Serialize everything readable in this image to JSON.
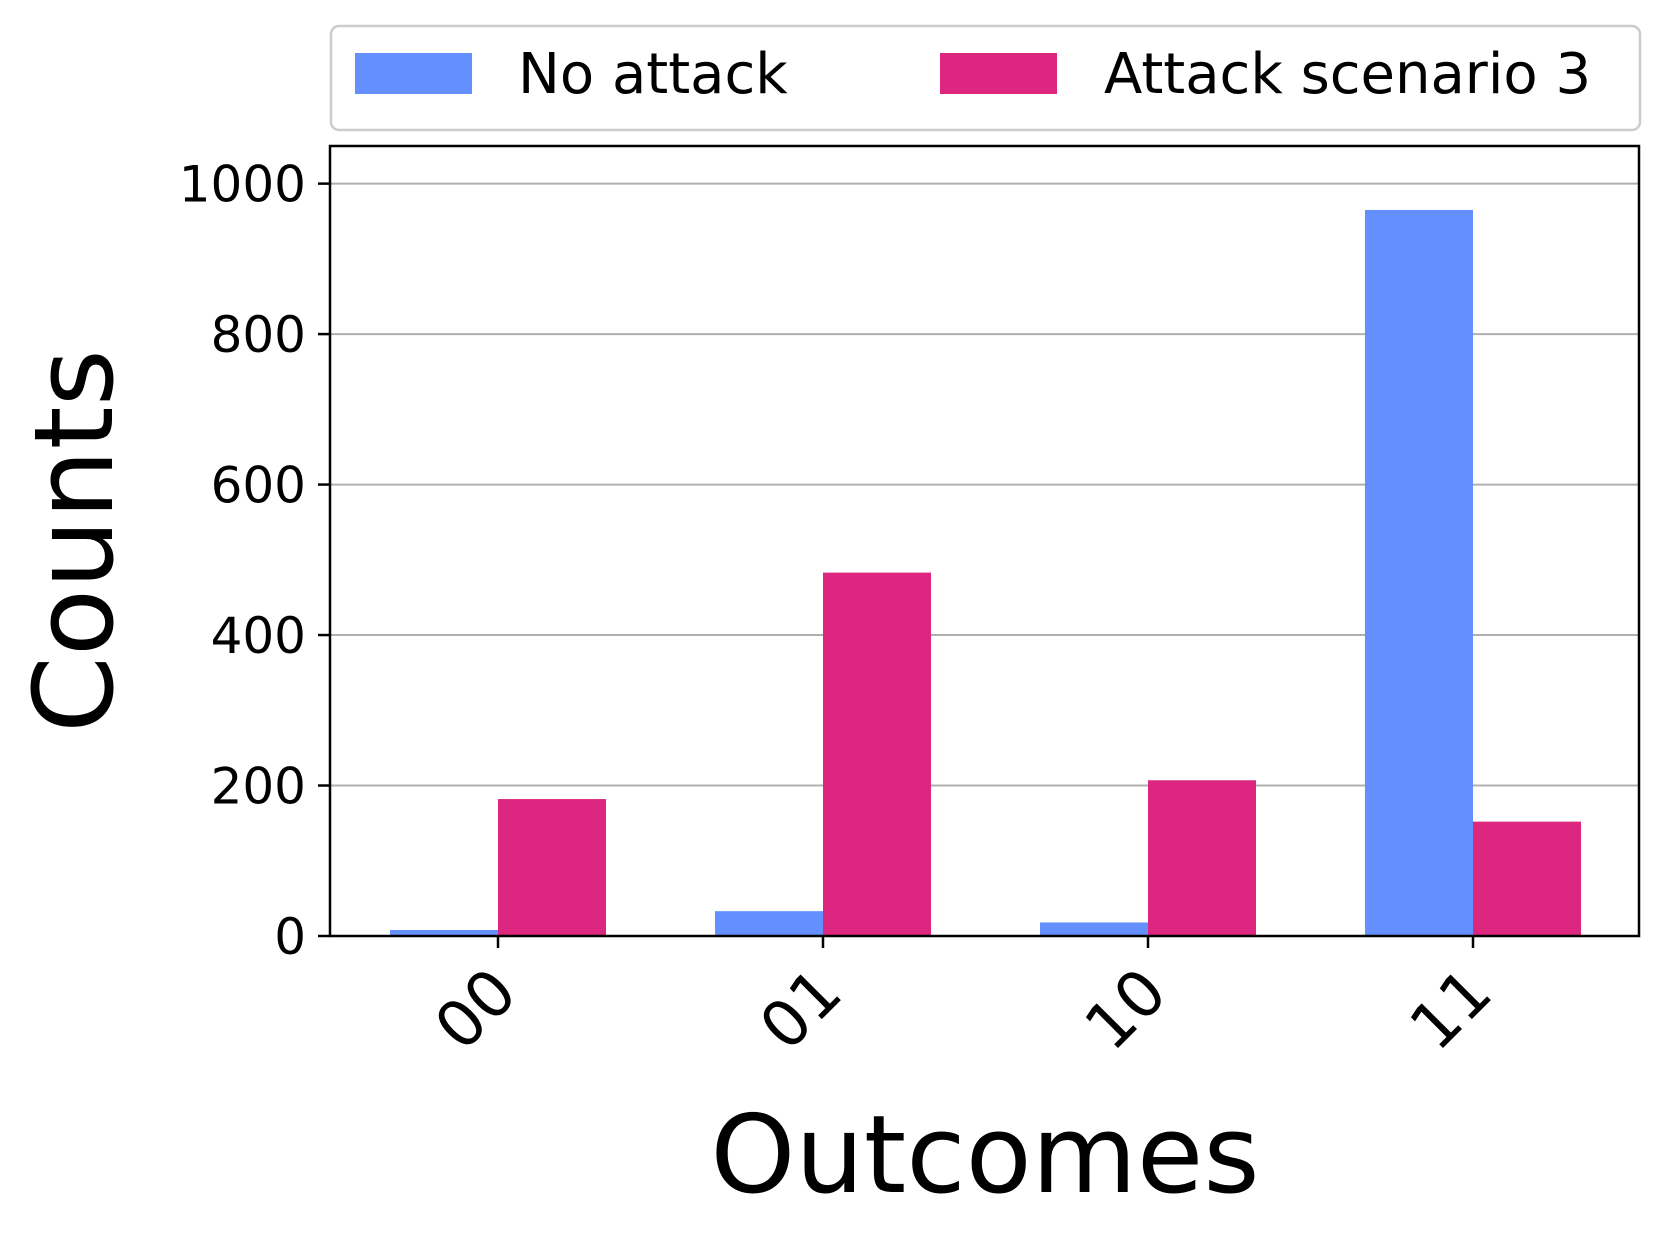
{
  "chart_data": {
    "type": "bar",
    "title": "",
    "xlabel": "Outcomes",
    "ylabel": "Counts",
    "categories": [
      "00",
      "01",
      "10",
      "11"
    ],
    "ylim": [
      0,
      1050
    ],
    "yticks": [
      0,
      200,
      400,
      600,
      800,
      1000
    ],
    "grid": "y",
    "legend_placement": "top, above plot",
    "legend_columns": 2,
    "series": [
      {
        "name": "No attack",
        "color": "#648FFF",
        "values": [
          8,
          33,
          18,
          965
        ]
      },
      {
        "name": "Attack scenario 3",
        "color": "#DC267F",
        "values": [
          182,
          483,
          207,
          152
        ]
      }
    ]
  }
}
